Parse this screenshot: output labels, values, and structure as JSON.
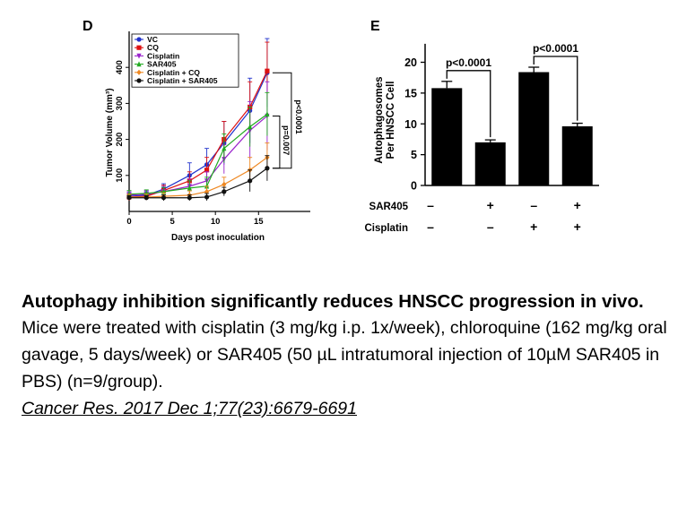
{
  "chart_data": [
    {
      "type": "line",
      "panel_label": "D",
      "title": "",
      "xlabel": "Days post inoculation",
      "ylabel": "Tumor Volume (mm³)",
      "xlim": [
        0,
        21
      ],
      "ylim": [
        0,
        500
      ],
      "x_ticks": [
        0,
        5,
        10,
        15
      ],
      "y_ticks": [
        100,
        200,
        300,
        400
      ],
      "legend_position": "top-left",
      "grid": false,
      "x": [
        0,
        2,
        4,
        7,
        9,
        11,
        14,
        16
      ],
      "series": [
        {
          "name": "VC",
          "color": "#2233cc",
          "marker": "circle",
          "values": [
            42,
            45,
            62,
            100,
            130,
            190,
            280,
            385
          ],
          "errors": [
            10,
            10,
            15,
            35,
            45,
            60,
            90,
            95
          ]
        },
        {
          "name": "CQ",
          "color": "#dd1111",
          "marker": "square",
          "values": [
            40,
            42,
            58,
            85,
            115,
            200,
            290,
            390
          ],
          "errors": [
            10,
            10,
            15,
            25,
            35,
            50,
            70,
            80
          ]
        },
        {
          "name": "Cisplatin",
          "color": "#9922cc",
          "marker": "triangle-down",
          "values": [
            45,
            48,
            55,
            70,
            85,
            145,
            225,
            265
          ],
          "errors": [
            10,
            10,
            15,
            20,
            25,
            40,
            80,
            95
          ]
        },
        {
          "name": "SAR405",
          "color": "#22aa22",
          "marker": "triangle-up",
          "values": [
            48,
            50,
            55,
            65,
            70,
            175,
            235,
            270
          ],
          "errors": [
            10,
            10,
            12,
            20,
            25,
            40,
            55,
            60
          ]
        },
        {
          "name": "Cisplatin + CQ",
          "color": "#ee8822",
          "marker": "diamond",
          "values": [
            40,
            40,
            42,
            45,
            55,
            75,
            115,
            150
          ],
          "errors": [
            8,
            8,
            10,
            12,
            15,
            20,
            35,
            40
          ]
        },
        {
          "name": "Cisplatin + SAR405",
          "color": "#111111",
          "marker": "circle",
          "values": [
            38,
            38,
            38,
            38,
            40,
            55,
            85,
            120
          ],
          "errors": [
            6,
            6,
            8,
            8,
            10,
            12,
            30,
            35
          ]
        }
      ],
      "annotations": [
        "p<0.0001",
        "p=0.007"
      ]
    },
    {
      "type": "bar",
      "panel_label": "E",
      "title": "",
      "ylabel": "Autophagosomes Per HNSCC Cell",
      "ylim": [
        0,
        24
      ],
      "y_ticks": [
        0,
        5,
        10,
        15,
        20
      ],
      "categories": [
        "1",
        "2",
        "3",
        "4"
      ],
      "values": [
        15.8,
        7,
        18.4,
        9.6
      ],
      "errors": [
        1.1,
        0.4,
        0.8,
        0.5
      ],
      "condition_rows": [
        {
          "label": "SAR405",
          "signs": [
            "–",
            "+",
            "–",
            "+"
          ]
        },
        {
          "label": "Cisplatin",
          "signs": [
            "–",
            "–",
            "+",
            "+"
          ]
        }
      ],
      "annotations": [
        "p<0.0001",
        "p<0.0001"
      ]
    }
  ],
  "caption": {
    "title": "Autophagy inhibition significantly reduces HNSCC progression in vivo.",
    "body": "Mice were treated with cisplatin (3 mg/kg i.p. 1x/week), chloroquine (162 mg/kg oral gavage, 5 days/week) or SAR405 (50 µL intratumoral injection of 10µM SAR405 in PBS) (n=9/group).",
    "citation": "Cancer Res. 2017 Dec 1;77(23):6679-6691"
  }
}
